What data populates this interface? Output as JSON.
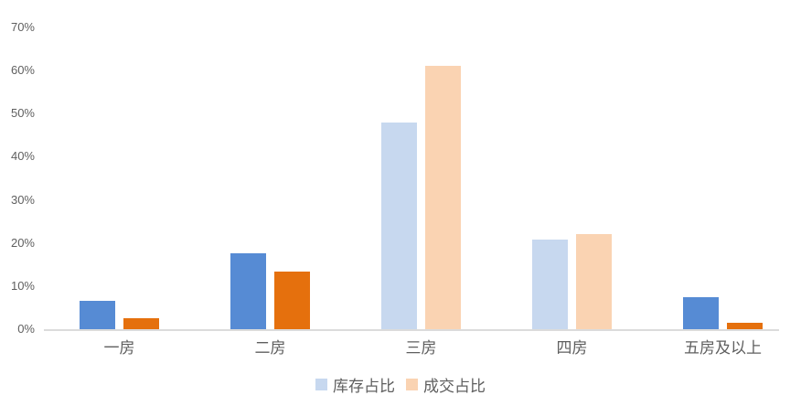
{
  "chart_data": {
    "type": "bar",
    "title": "",
    "xlabel": "",
    "ylabel": "",
    "categories": [
      "一房",
      "二房",
      "三房",
      "四房",
      "五房及以上"
    ],
    "series": [
      {
        "name": "库存占比",
        "values": [
          6.5,
          17.7,
          48.0,
          20.7,
          7.5
        ],
        "color_muted": "#C7D8EF",
        "color_highlight": "#568BD4"
      },
      {
        "name": "成交占比",
        "values": [
          2.5,
          13.4,
          61.0,
          22.0,
          1.5
        ],
        "color_muted": "#FAD3B2",
        "color_highlight": "#E5700D"
      }
    ],
    "highlighted_categories": [
      true,
      true,
      false,
      false,
      true
    ],
    "ylim": [
      0,
      70
    ],
    "ytick_step": 10,
    "yticks": [
      "0%",
      "10%",
      "20%",
      "30%",
      "40%",
      "50%",
      "60%",
      "70%"
    ],
    "grid": false,
    "legend_position": "bottom"
  },
  "legend": {
    "items": [
      {
        "label": "库存占比",
        "color": "#C7D8EF"
      },
      {
        "label": "成交占比",
        "color": "#FAD3B2"
      }
    ]
  },
  "colors": {
    "axis_line": "#DBDBDB",
    "label_text": "#5F5F5F",
    "background": "#FFFFFF"
  }
}
